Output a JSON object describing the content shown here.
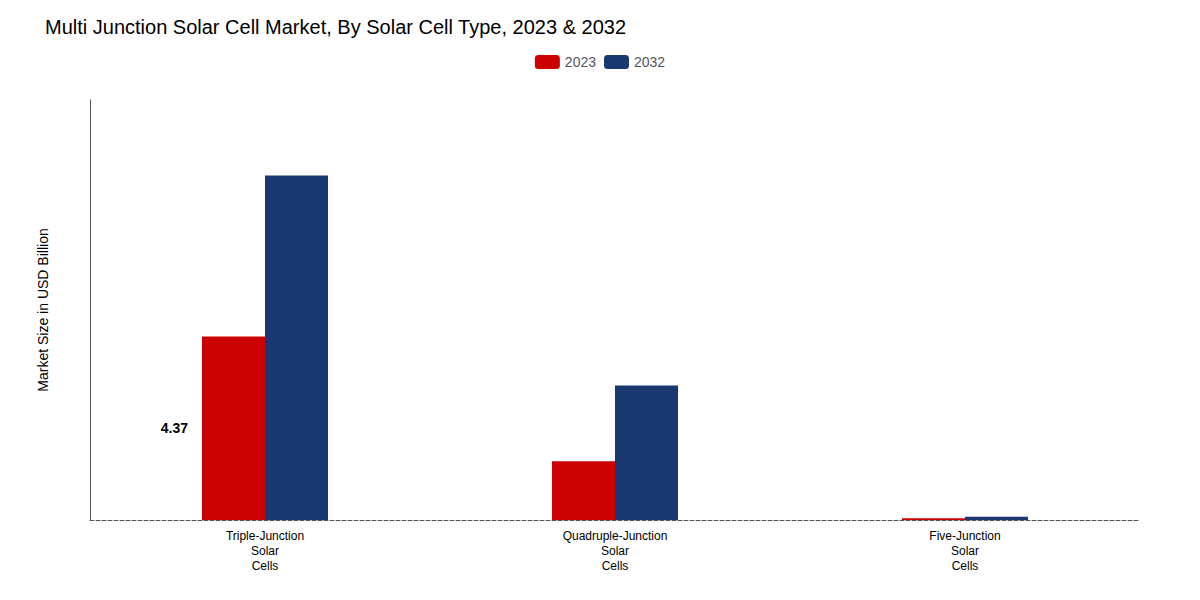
{
  "chart_data": {
    "type": "bar",
    "title": "Multi Junction Solar Cell Market, By Solar Cell Type, 2023 & 2032",
    "ylabel": "Market Size in USD Billion",
    "categories": [
      "Triple-Junction\nSolar\nCells",
      "Quadruple-Junction\nSolar\nCells",
      "Five-Junction\nSolar\nCells"
    ],
    "series": [
      {
        "name": "2023",
        "color": "#cc0000",
        "values": [
          4.37,
          1.4,
          0.04
        ]
      },
      {
        "name": "2032",
        "color": "#1a3870",
        "values": [
          8.2,
          3.2,
          0.08
        ]
      }
    ],
    "annotation": {
      "text": "4.37",
      "series": "2023",
      "category": "Triple-Junction\nSolar\nCells"
    },
    "ylim": [
      0,
      10
    ],
    "grid": false,
    "legend": "top",
    "tick_labels": "x"
  }
}
